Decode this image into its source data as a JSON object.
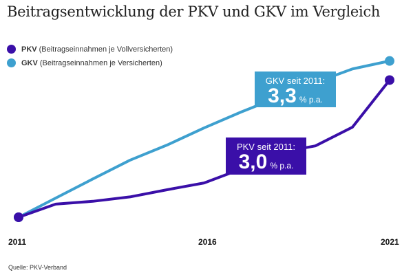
{
  "title": "Beitragsentwicklung der PKV und GKV im Vergleich",
  "legend": [
    {
      "key": "PKV",
      "desc": "(Beitragseinnahmen je Vollversicherten)",
      "color": "#3a0fa8"
    },
    {
      "key": "GKV",
      "desc": "(Beitragseinnahmen je Versicherten)",
      "color": "#3ea0cf"
    }
  ],
  "annotations": {
    "gkv": {
      "label": "GKV seit 2011:",
      "value": "3,3",
      "unit": "% p.a."
    },
    "pkv": {
      "label": "PKV seit 2011:",
      "value": "3,0",
      "unit": "% p.a."
    }
  },
  "source": "Quelle: PKV-Verband",
  "chart_data": {
    "type": "line",
    "title": "Beitragsentwicklung der PKV und GKV im Vergleich",
    "xlabel": "",
    "ylabel": "",
    "x": [
      2011,
      2012,
      2013,
      2014,
      2015,
      2016,
      2017,
      2018,
      2019,
      2020,
      2021
    ],
    "xticks": [
      "2011",
      "2016",
      "2021"
    ],
    "ylim": [
      100,
      140
    ],
    "grid": false,
    "y_axis_shown": false,
    "legend_position": "top-left",
    "series": [
      {
        "name": "PKV",
        "color": "#3a0fa8",
        "values": [
          100,
          103.3,
          104.0,
          105.1,
          106.9,
          108.6,
          112.1,
          116.2,
          117.9,
          122.6,
          134.4
        ]
      },
      {
        "name": "GKV",
        "color": "#3ea0cf",
        "values": [
          100,
          104.8,
          109.6,
          114.3,
          118.1,
          122.4,
          126.4,
          130.1,
          133.8,
          137.2,
          139.2
        ]
      }
    ]
  }
}
